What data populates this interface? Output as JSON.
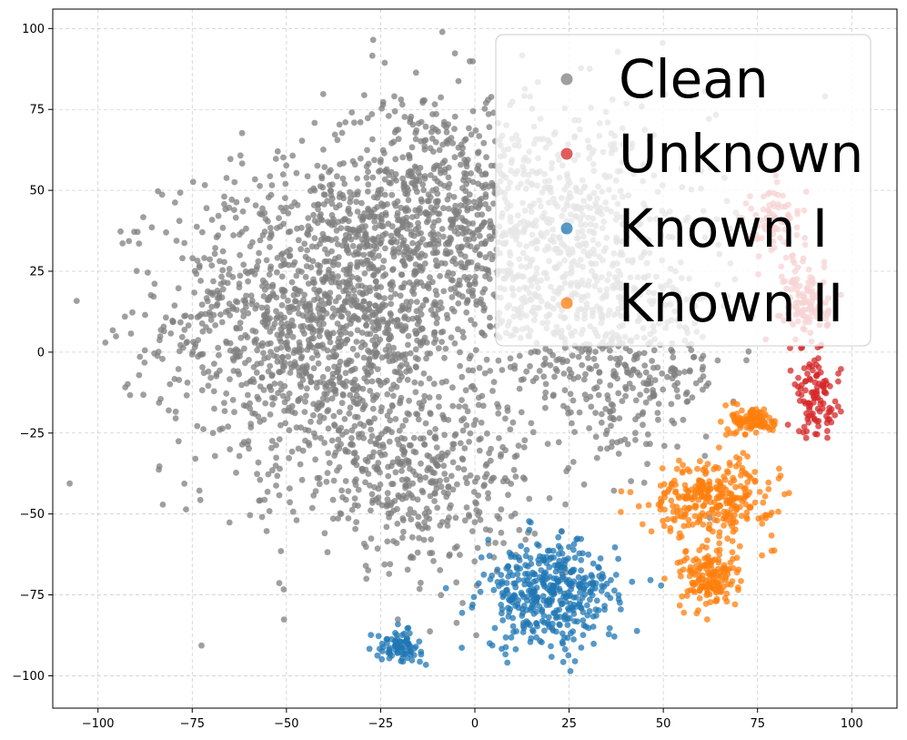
{
  "chart_data": {
    "type": "scatter",
    "title": "",
    "xlabel": "",
    "ylabel": "",
    "xlim": [
      -112,
      112
    ],
    "ylim": [
      -110,
      106
    ],
    "x_ticks": [
      -100,
      -75,
      -50,
      -25,
      0,
      25,
      50,
      75,
      100
    ],
    "y_ticks": [
      -100,
      -75,
      -50,
      -25,
      0,
      25,
      50,
      75,
      100
    ],
    "grid": true,
    "legend_placement": "top-right",
    "series": [
      {
        "name": "Clean",
        "color": "#7f7f7f",
        "points_estimated": 3500,
        "clusters": [
          {
            "center": [
              -40,
              10
            ],
            "spread": [
              28,
              32
            ],
            "count": 1500
          },
          {
            "center": [
              -10,
              45
            ],
            "spread": [
              20,
              25
            ],
            "count": 600
          },
          {
            "center": [
              25,
              30
            ],
            "spread": [
              25,
              30
            ],
            "count": 700
          },
          {
            "center": [
              40,
              -5
            ],
            "spread": [
              18,
              18
            ],
            "count": 300
          },
          {
            "center": [
              -15,
              -40
            ],
            "spread": [
              20,
              18
            ],
            "count": 400
          }
        ]
      },
      {
        "name": "Unknown",
        "color": "#d62728",
        "points_estimated": 300,
        "clusters": [
          {
            "center": [
              80,
              40
            ],
            "spread": [
              5,
              8
            ],
            "count": 80
          },
          {
            "center": [
              88,
              15
            ],
            "spread": [
              4,
              10
            ],
            "count": 120
          },
          {
            "center": [
              91,
              -15
            ],
            "spread": [
              4,
              8
            ],
            "count": 100
          }
        ]
      },
      {
        "name": "Known I",
        "color": "#1f77b4",
        "points_estimated": 500,
        "clusters": [
          {
            "center": [
              20,
              -75
            ],
            "spread": [
              12,
              11
            ],
            "count": 420
          },
          {
            "center": [
              -20,
              -91
            ],
            "spread": [
              4,
              3
            ],
            "count": 80
          }
        ]
      },
      {
        "name": "Known II",
        "color": "#ff7f0e",
        "points_estimated": 560,
        "clusters": [
          {
            "center": [
              63,
              -45
            ],
            "spread": [
              11,
              8
            ],
            "count": 300
          },
          {
            "center": [
              62,
              -70
            ],
            "spread": [
              5,
              6
            ],
            "count": 160
          },
          {
            "center": [
              74,
              -21
            ],
            "spread": [
              4,
              3
            ],
            "count": 100
          }
        ]
      }
    ]
  }
}
